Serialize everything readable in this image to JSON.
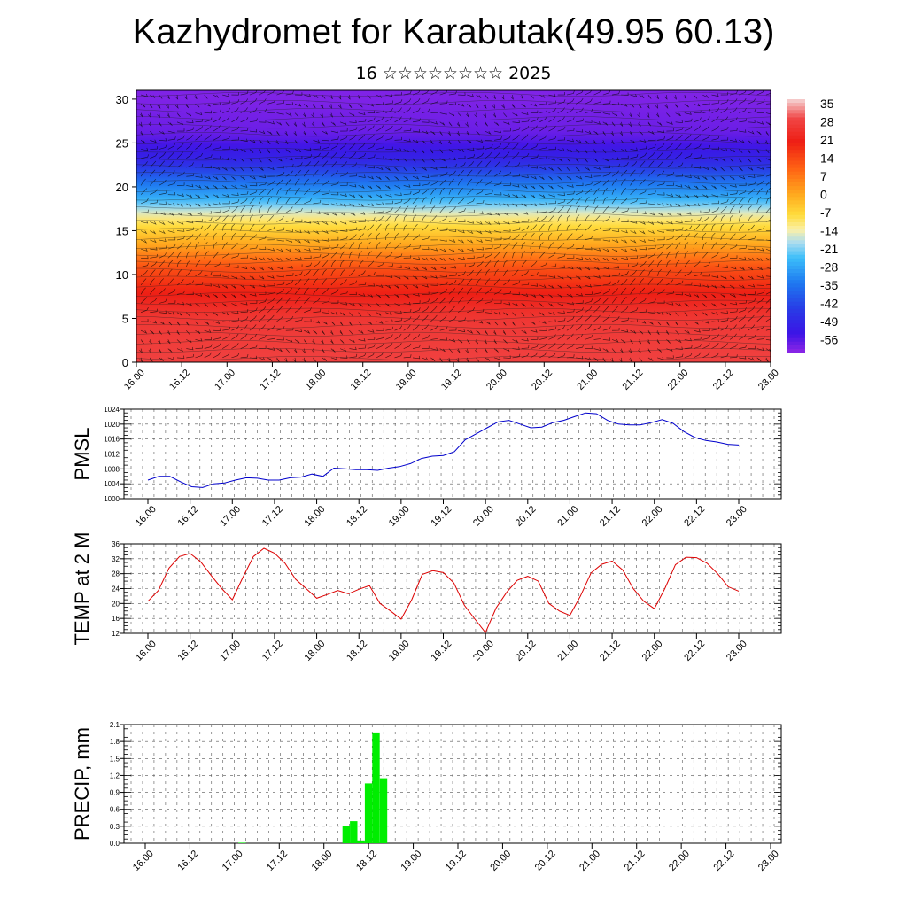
{
  "title": "Kazhydromet for Karabutak(49.95 60.13)",
  "subtitle": "16 ☆☆☆☆☆☆☆☆ 2025",
  "time_labels": [
    "16.00",
    "16.12",
    "17.00",
    "17.12",
    "18.00",
    "18.12",
    "19.00",
    "19.12",
    "20.00",
    "20.12",
    "21.00",
    "21.12",
    "22.00",
    "22.12",
    "23.00"
  ],
  "colors": {
    "pmsl_line": "#0000cc",
    "temp_line": "#dd0000",
    "precip_bar": "#00ee00",
    "axis": "#000000"
  },
  "chart_data": [
    {
      "type": "heatmap",
      "title": "",
      "xlabel": "",
      "ylabel": "",
      "ylim": [
        0,
        31
      ],
      "yticks": [
        0,
        5,
        10,
        15,
        20,
        25,
        30
      ],
      "colorbar_labels": [
        "35",
        "28",
        "21",
        "14",
        "7",
        "0",
        "-7",
        "-14",
        "-21",
        "-28",
        "-35",
        "-42",
        "-49",
        "-56"
      ],
      "colorbar_range": [
        -60,
        38
      ],
      "overlay": "wind barbs and temperature contours",
      "level_temperatures": [
        [
          0,
          30
        ],
        [
          5,
          28
        ],
        [
          8,
          22
        ],
        [
          11,
          14
        ],
        [
          13,
          4
        ],
        [
          15,
          -4
        ],
        [
          16.5,
          -10
        ],
        [
          18.5,
          -24
        ],
        [
          21,
          -36
        ],
        [
          23,
          -48
        ],
        [
          26,
          -56
        ],
        [
          30,
          -58
        ],
        [
          31,
          -58
        ]
      ]
    },
    {
      "type": "line",
      "ylabel": "PMSL",
      "ylim": [
        1000,
        1024
      ],
      "yticks": [
        1000,
        1004,
        1008,
        1012,
        1016,
        1020,
        1024
      ],
      "series": [
        {
          "values": [
            1005.0,
            1006.0,
            1006.0,
            1004.5,
            1003.2,
            1003.0,
            1004.0,
            1004.2,
            1005.0,
            1005.6,
            1005.5,
            1005.0,
            1005.0,
            1005.6,
            1005.8,
            1006.6,
            1006.0,
            1008.2,
            1008.0,
            1007.8,
            1007.8,
            1007.6,
            1008.2,
            1008.6,
            1009.4,
            1010.8,
            1011.4,
            1011.6,
            1012.6,
            1015.8,
            1017.4,
            1019.0,
            1020.6,
            1021.0,
            1020.0,
            1019.0,
            1019.2,
            1020.4,
            1021.0,
            1022.0,
            1023.0,
            1022.8,
            1021.0,
            1020.0,
            1019.8,
            1019.8,
            1020.4,
            1021.2,
            1020.2,
            1018.0,
            1016.4,
            1015.6,
            1015.2,
            1014.6,
            1014.4
          ]
        }
      ]
    },
    {
      "type": "line",
      "ylabel": "TEMP at 2 M",
      "ylim": [
        12,
        36
      ],
      "yticks": [
        12,
        16,
        20,
        24,
        28,
        32,
        36
      ],
      "series": [
        {
          "values": [
            20.6,
            23.5,
            29.5,
            32.6,
            33.4,
            31.2,
            27.5,
            24.0,
            21.0,
            27.0,
            32.6,
            34.8,
            33.5,
            30.8,
            26.5,
            24.0,
            21.4,
            22.4,
            23.5,
            22.6,
            23.8,
            24.8,
            20.0,
            18.0,
            15.8,
            21.0,
            27.8,
            28.8,
            28.3,
            25.5,
            19.5,
            15.8,
            12.2,
            18.8,
            23.0,
            26.2,
            27.3,
            26.0,
            20.0,
            18.0,
            16.8,
            22.0,
            28.2,
            30.5,
            31.4,
            29.0,
            24.0,
            20.6,
            18.6,
            24.0,
            30.4,
            32.4,
            32.3,
            30.8,
            28.0,
            24.5,
            23.3
          ]
        }
      ]
    },
    {
      "type": "bar",
      "ylabel": "PRECIP, mm",
      "ylim": [
        0,
        2.1
      ],
      "yticks": [
        "0.0",
        "0.3",
        "0.6",
        "0.9",
        "1.2",
        "1.5",
        "1.8",
        "2.1"
      ],
      "values": [
        0,
        0,
        0,
        0,
        0,
        0,
        0,
        0,
        0,
        0,
        0,
        0,
        0,
        0.01,
        0,
        0,
        0,
        0,
        0,
        0,
        0,
        0,
        0,
        0,
        0,
        0,
        0,
        0.3,
        0.39,
        0.05,
        1.06,
        1.96,
        1.15,
        0,
        0,
        0,
        0,
        0,
        0,
        0,
        0,
        0,
        0,
        0,
        0,
        0,
        0,
        0,
        0,
        0,
        0,
        0,
        0,
        0,
        0,
        0,
        0,
        0,
        0,
        0,
        0,
        0,
        0,
        0,
        0,
        0,
        0,
        0,
        0,
        0,
        0,
        0,
        0,
        0,
        0,
        0,
        0,
        0,
        0,
        0,
        0,
        0,
        0,
        0,
        0
      ]
    }
  ]
}
